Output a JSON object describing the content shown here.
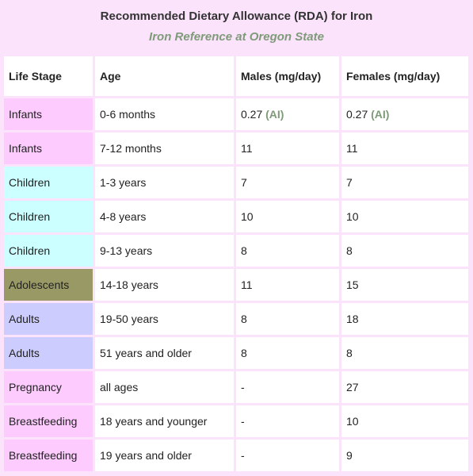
{
  "title": "Recommended Dietary Allowance (RDA) for Iron",
  "subtitle": "Iron Reference at Oregon State",
  "colors": {
    "page_bg": "#fbe3fb",
    "infant": "#fecbfe",
    "children": "#ccffff",
    "adolescents": "#999966",
    "adults": "#ccccff",
    "pregnancy": "#fecbfe",
    "breastfeeding": "#fecbfe",
    "ai_text": "#7e9a79"
  },
  "headers": [
    "Life Stage",
    "Age",
    "Males (mg/day)",
    "Females (mg/day)"
  ],
  "ai_label": "(AI)",
  "rows": [
    {
      "stage": "Infants",
      "age": "0-6 months",
      "males": "0.27",
      "females": "0.27",
      "color": "#fecbfe",
      "ai": true
    },
    {
      "stage": "Infants",
      "age": "7-12 months",
      "males": "11",
      "females": "11",
      "color": "#fecbfe",
      "ai": false
    },
    {
      "stage": "Children",
      "age": "1-3 years",
      "males": "7",
      "females": "7",
      "color": "#ccffff",
      "ai": false
    },
    {
      "stage": "Children",
      "age": "4-8 years",
      "males": "10",
      "females": "10",
      "color": "#ccffff",
      "ai": false
    },
    {
      "stage": "Children",
      "age": "9-13 years",
      "males": "8",
      "females": "8",
      "color": "#ccffff",
      "ai": false
    },
    {
      "stage": "Adolescents",
      "age": "14-18 years",
      "males": "11",
      "females": "15",
      "color": "#999966",
      "ai": false
    },
    {
      "stage": "Adults",
      "age": "19-50 years",
      "males": "8",
      "females": "18",
      "color": "#ccccff",
      "ai": false
    },
    {
      "stage": "Adults",
      "age": "51 years and older",
      "males": "8",
      "females": "8",
      "color": "#ccccff",
      "ai": false
    },
    {
      "stage": "Pregnancy",
      "age": "all ages",
      "males": "-",
      "females": "27",
      "color": "#fecbfe",
      "ai": false
    },
    {
      "stage": "Breastfeeding",
      "age": "18 years and younger",
      "males": "-",
      "females": "10",
      "color": "#fecbfe",
      "ai": false
    },
    {
      "stage": "Breastfeeding",
      "age": "19 years and older",
      "males": "-",
      "females": "9",
      "color": "#fecbfe",
      "ai": false
    }
  ]
}
